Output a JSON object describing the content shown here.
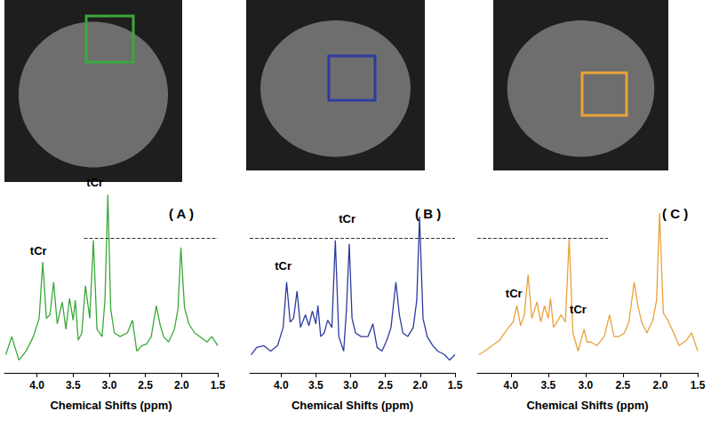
{
  "chart_data": [
    {
      "type": "line",
      "title": "( A )",
      "x_label": "Chemical Shifts (ppm)",
      "color": "#3aa83a",
      "x": [
        4.43,
        4.35,
        4.25,
        4.15,
        4.05,
        3.97,
        3.92,
        3.87,
        3.82,
        3.77,
        3.72,
        3.65,
        3.6,
        3.55,
        3.5,
        3.47,
        3.43,
        3.38,
        3.33,
        3.27,
        3.22,
        3.17,
        3.1,
        3.06,
        3.02,
        2.98,
        2.93,
        2.85,
        2.75,
        2.68,
        2.62,
        2.55,
        2.48,
        2.42,
        2.35,
        2.3,
        2.25,
        2.18,
        2.1,
        2.05,
        2.01,
        1.96,
        1.9,
        1.82,
        1.75,
        1.65,
        1.58,
        1.5
      ],
      "values": [
        10,
        20,
        7,
        12,
        20,
        30,
        61,
        30,
        32,
        50,
        27,
        39,
        24,
        41,
        29,
        40,
        18,
        22,
        48,
        30,
        73,
        24,
        20,
        40,
        98,
        35,
        22,
        20,
        22,
        29,
        12,
        15,
        16,
        20,
        37,
        27,
        20,
        17,
        24,
        35,
        69,
        36,
        27,
        22,
        20,
        17,
        20,
        15
      ],
      "xlim": [
        4.45,
        1.5
      ],
      "ylim": [
        0,
        110
      ],
      "xticks": [
        {
          "value": 4,
          "label": "4.0"
        },
        3.5,
        {
          "value": 3,
          "label": "3.0"
        },
        2.5,
        {
          "value": 2,
          "label": "2.0"
        },
        1.5
      ],
      "tick_labels": "x",
      "annotations": [
        {
          "text": "tCr",
          "x": 3.98,
          "y": 67
        },
        {
          "text": "tCr",
          "x": 3.2,
          "y": 105
        }
      ],
      "reference_line": {
        "y": 74,
        "x": [
          3.35,
          1.5
        ]
      }
    },
    {
      "type": "line",
      "title": "( B )",
      "x_label": "Chemical Shifts (ppm)",
      "color": "#2e3b9e",
      "x": [
        4.43,
        4.35,
        4.25,
        4.15,
        4.05,
        3.97,
        3.92,
        3.87,
        3.82,
        3.77,
        3.72,
        3.65,
        3.6,
        3.55,
        3.5,
        3.47,
        3.43,
        3.38,
        3.33,
        3.27,
        3.22,
        3.17,
        3.1,
        3.06,
        3.02,
        2.98,
        2.93,
        2.85,
        2.75,
        2.68,
        2.62,
        2.55,
        2.48,
        2.42,
        2.35,
        2.3,
        2.25,
        2.18,
        2.1,
        2.05,
        2.01,
        1.96,
        1.9,
        1.82,
        1.75,
        1.65,
        1.58,
        1.5
      ],
      "values": [
        10,
        14,
        15,
        12,
        15,
        25,
        50,
        28,
        30,
        45,
        25,
        32,
        26,
        34,
        27,
        37,
        20,
        22,
        29,
        25,
        73,
        20,
        12,
        35,
        71,
        30,
        22,
        20,
        20,
        27,
        14,
        12,
        18,
        25,
        50,
        32,
        22,
        20,
        25,
        40,
        86,
        30,
        20,
        15,
        12,
        10,
        7,
        10
      ],
      "xlim": [
        4.45,
        1.5
      ],
      "ylim": [
        0,
        110
      ],
      "xticks": [
        {
          "value": 4,
          "label": "4.0"
        },
        3.5,
        {
          "value": 3,
          "label": "3.0"
        },
        2.5,
        {
          "value": 2,
          "label": "2.0"
        },
        1.5
      ],
      "tick_labels": "x",
      "annotations": [
        {
          "text": "tCr",
          "x": 3.97,
          "y": 59
        },
        {
          "text": "tCr",
          "x": 3.05,
          "y": 85
        }
      ],
      "reference_line": {
        "y": 74,
        "x": [
          4.45,
          1.5
        ]
      }
    },
    {
      "type": "line",
      "title": "( C )",
      "x_label": "Chemical Shifts (ppm)",
      "color": "#e8a23a",
      "x": [
        4.43,
        4.35,
        4.25,
        4.15,
        4.05,
        3.97,
        3.92,
        3.87,
        3.82,
        3.77,
        3.72,
        3.65,
        3.6,
        3.55,
        3.5,
        3.47,
        3.43,
        3.38,
        3.33,
        3.27,
        3.22,
        3.17,
        3.1,
        3.06,
        3.02,
        2.98,
        2.93,
        2.85,
        2.75,
        2.68,
        2.62,
        2.55,
        2.48,
        2.42,
        2.35,
        2.3,
        2.25,
        2.18,
        2.1,
        2.05,
        2.01,
        1.96,
        1.9,
        1.82,
        1.75,
        1.65,
        1.58,
        1.5
      ],
      "values": [
        10,
        12,
        15,
        18,
        24,
        28,
        37,
        26,
        32,
        54,
        30,
        39,
        28,
        37,
        30,
        41,
        25,
        28,
        32,
        28,
        74,
        22,
        12,
        18,
        24,
        17,
        17,
        15,
        20,
        32,
        20,
        20,
        22,
        28,
        50,
        37,
        28,
        22,
        29,
        40,
        88,
        33,
        29,
        22,
        15,
        18,
        22,
        12
      ],
      "xlim": [
        4.45,
        1.5
      ],
      "ylim": [
        0,
        110
      ],
      "xticks": [
        {
          "value": 4,
          "label": "4.0"
        },
        3.5,
        {
          "value": 3,
          "label": "3.0"
        },
        2.5,
        {
          "value": 2,
          "label": "2.0"
        },
        1.5
      ],
      "tick_labels": "x",
      "annotations": [
        {
          "text": "tCr",
          "x": 3.96,
          "y": 44
        },
        {
          "text": "tCr",
          "x": 3.1,
          "y": 35
        }
      ],
      "reference_line": {
        "y": 74,
        "x": [
          4.45,
          2.7
        ]
      }
    }
  ]
}
